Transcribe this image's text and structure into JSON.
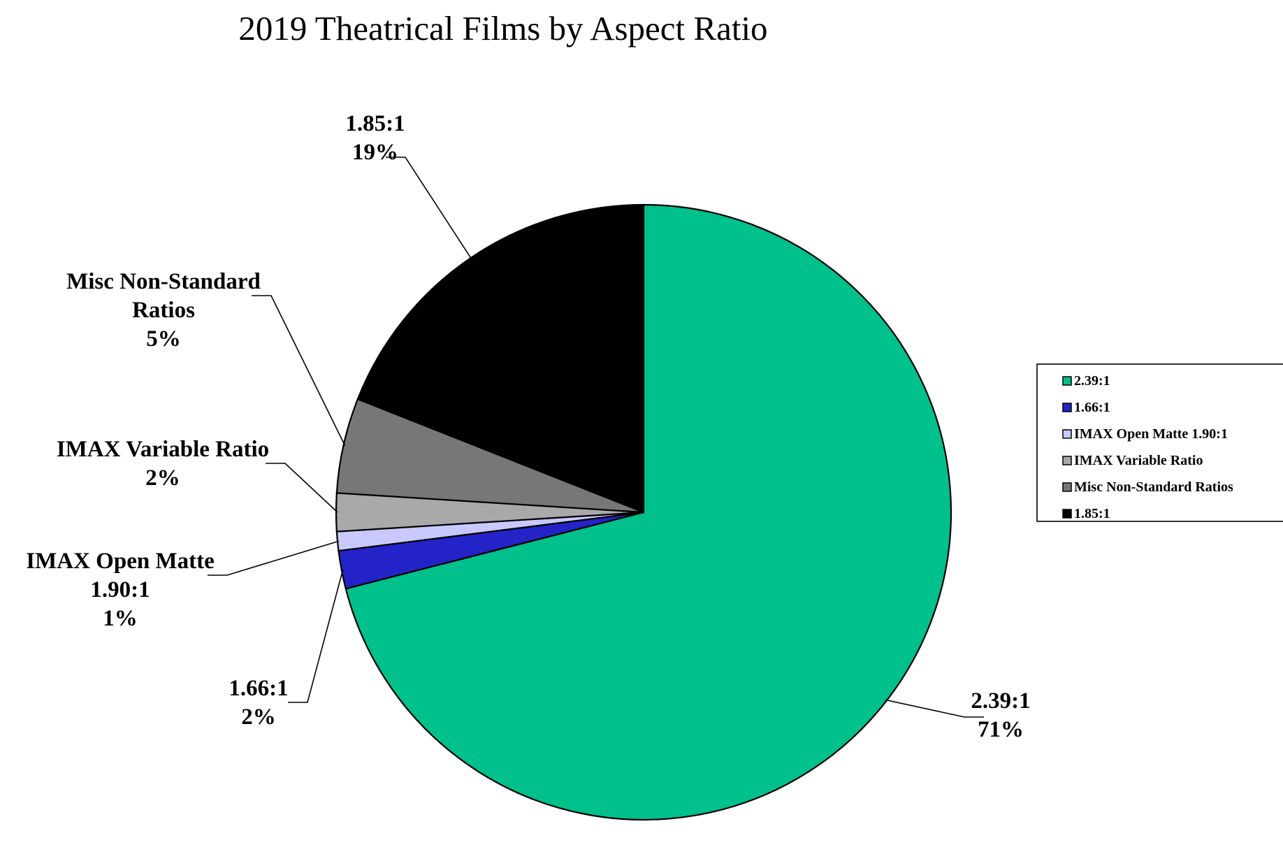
{
  "chart_data": {
    "type": "pie",
    "title": "2019 Theatrical Films by Aspect Ratio",
    "slices": [
      {
        "name": "2.39:1",
        "value": 71,
        "color": "#00c08b",
        "label_lines": [
          "2.39:1",
          "71%"
        ]
      },
      {
        "name": "1.66:1",
        "value": 2,
        "color": "#2323c8",
        "label_lines": [
          "1.66:1",
          "2%"
        ]
      },
      {
        "name": "IMAX Open Matte 1.90:1",
        "value": 1,
        "color": "#c9c9ff",
        "label_lines": [
          "IMAX Open Matte",
          "1.90:1",
          "1%"
        ]
      },
      {
        "name": "IMAX Variable Ratio",
        "value": 2,
        "color": "#a9a9a9",
        "label_lines": [
          "IMAX Variable Ratio",
          "2%"
        ]
      },
      {
        "name": "Misc Non-Standard Ratios",
        "value": 5,
        "color": "#777777",
        "label_lines": [
          "Misc Non-Standard",
          "Ratios",
          "5%"
        ]
      },
      {
        "name": "1.85:1",
        "value": 19,
        "color": "#000000",
        "label_lines": [
          "1.85:1",
          "19%"
        ]
      }
    ],
    "legend": {
      "placement": "right",
      "entries": [
        "2.39:1",
        "1.66:1",
        "IMAX Open Matte 1.90:1",
        "IMAX Variable Ratio",
        "Misc Non-Standard Ratios",
        "1.85:1"
      ]
    }
  }
}
